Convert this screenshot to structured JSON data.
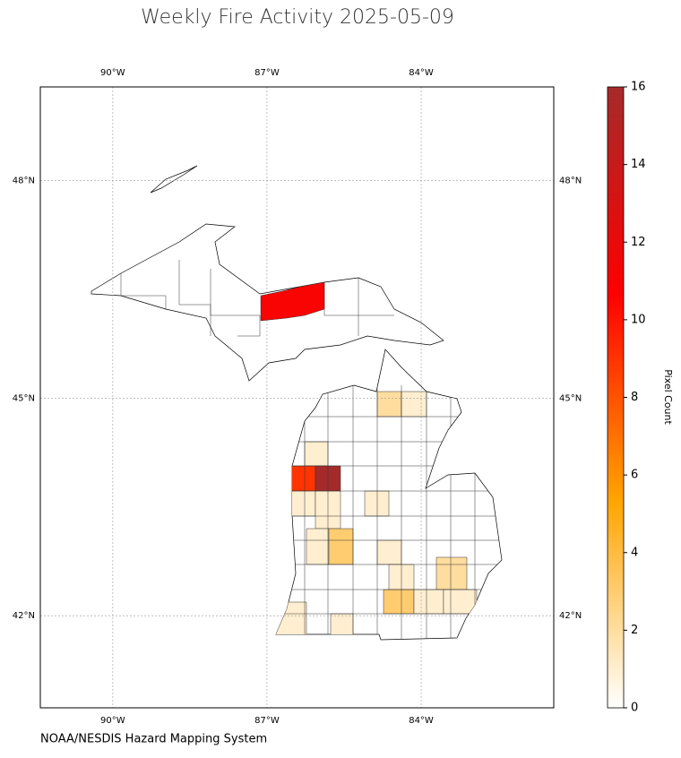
{
  "chart_data": {
    "type": "map",
    "title": "Weekly Fire Activity 2025-05-09",
    "source": "NOAA/NESDIS Hazard Mapping System",
    "xlim": [
      -91.41,
      -81.42
    ],
    "ylim": [
      40.73,
      49.29
    ],
    "xticks": [
      {
        "value": -90,
        "label": "90°W"
      },
      {
        "value": -87,
        "label": "87°W"
      },
      {
        "value": -84,
        "label": "84°W"
      }
    ],
    "yticks": [
      {
        "value": 48,
        "label": "48°N"
      },
      {
        "value": 45,
        "label": "45°N"
      },
      {
        "value": 42,
        "label": "42°N"
      }
    ],
    "grid": true,
    "values": [
      11,
      2,
      1,
      1,
      9,
      16,
      1,
      1,
      1,
      1,
      3,
      1,
      1,
      2,
      3,
      1,
      1,
      1,
      1
    ],
    "colorbar": {
      "label": "Pixel Count",
      "lim": [
        0,
        16
      ],
      "ticks": [
        0,
        2,
        4,
        6,
        8,
        10,
        12,
        14,
        16
      ],
      "colormap": [
        "#ffffff",
        "#ffa500",
        "#ff0000",
        "#a52a2a"
      ]
    }
  }
}
